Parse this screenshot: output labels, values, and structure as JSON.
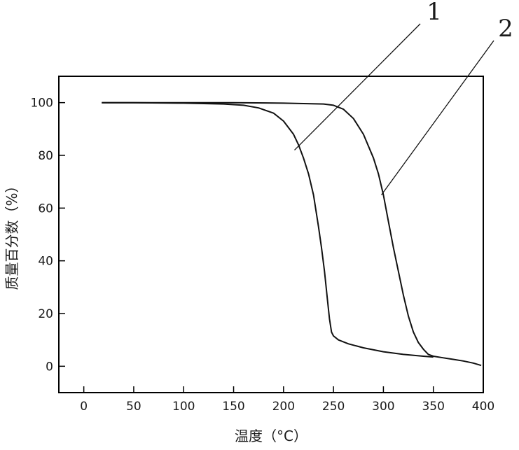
{
  "chart_data": {
    "type": "line",
    "title": "",
    "xlabel": "温度（°C）",
    "ylabel": "质量百分数（%）",
    "xlim": [
      -25,
      400
    ],
    "ylim": [
      -10,
      110
    ],
    "x_ticks": [
      0,
      50,
      100,
      150,
      200,
      250,
      300,
      350,
      400
    ],
    "y_ticks": [
      0,
      20,
      40,
      60,
      80,
      100
    ],
    "grid": false,
    "legend": "none",
    "colors": {
      "line": "#111111",
      "axis": "#000000"
    },
    "series": [
      {
        "label": "1",
        "x": [
          18,
          50,
          100,
          140,
          160,
          175,
          190,
          200,
          210,
          215,
          220,
          225,
          230,
          235,
          238,
          241,
          244,
          246,
          248,
          250,
          255,
          265,
          280,
          300,
          320,
          340,
          350
        ],
        "y": [
          100,
          100,
          99.8,
          99.5,
          99,
          98,
          96,
          93,
          88,
          84,
          79,
          73,
          65,
          53,
          45,
          36,
          25,
          18,
          13,
          11.5,
          10,
          8.5,
          7,
          5.5,
          4.5,
          3.8,
          3.5
        ]
      },
      {
        "label": "2",
        "x": [
          18,
          100,
          150,
          200,
          240,
          250,
          260,
          270,
          280,
          290,
          295,
          300,
          305,
          310,
          315,
          320,
          325,
          330,
          335,
          340,
          345,
          350,
          360,
          370,
          380,
          390,
          398
        ],
        "y": [
          100,
          100,
          100,
          99.8,
          99.5,
          99,
          97.5,
          94,
          88,
          79,
          73,
          65,
          55,
          45,
          36,
          27,
          19,
          13,
          9,
          6.5,
          4.5,
          3.8,
          3.2,
          2.6,
          2,
          1.2,
          0.3
        ]
      }
    ],
    "annotations": [
      {
        "text": "1",
        "series": "1",
        "point": [
          211,
          82
        ]
      },
      {
        "text": "2",
        "series": "2",
        "point": [
          298,
          65
        ]
      }
    ]
  }
}
